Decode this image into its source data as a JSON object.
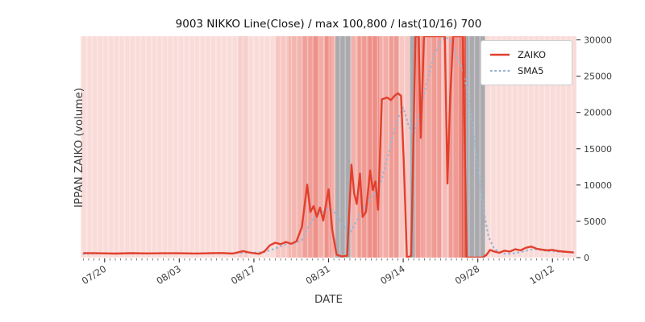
{
  "chart_data": {
    "type": "line",
    "title": "9003 NIKKO Line(Close) / max 100,800 / last(10/16) 700",
    "xlabel": "DATE",
    "ylabel": "IPPAN ZAIKO (volume)",
    "ylim": [
      0,
      30500
    ],
    "y_ticks": [
      0,
      5000,
      10000,
      15000,
      20000,
      25000,
      30000
    ],
    "x_domain_days": [
      -0.5,
      92.5
    ],
    "x_start_date": "07/16",
    "x_end_date": "10/16",
    "x_ticks": [
      {
        "day": 4,
        "label": "07/20"
      },
      {
        "day": 18,
        "label": "08/03"
      },
      {
        "day": 32,
        "label": "08/17"
      },
      {
        "day": 46,
        "label": "08/31"
      },
      {
        "day": 60,
        "label": "09/14"
      },
      {
        "day": 74,
        "label": "09/28"
      },
      {
        "day": 88,
        "label": "10/12"
      }
    ],
    "grid": false,
    "legend_position": "upper right",
    "plot_background": "#f9dcd9",
    "max_value": 100800,
    "last_value": 700,
    "last_date": "10/16",
    "series": [
      {
        "name": "ZAIKO",
        "color": "#e2402d",
        "style": "solid",
        "points": [
          [
            0,
            620
          ],
          [
            3,
            600
          ],
          [
            6,
            560
          ],
          [
            9,
            610
          ],
          [
            12,
            580
          ],
          [
            15,
            600
          ],
          [
            18,
            600
          ],
          [
            21,
            570
          ],
          [
            24,
            610
          ],
          [
            26,
            630
          ],
          [
            28,
            550
          ],
          [
            30,
            900
          ],
          [
            31,
            720
          ],
          [
            32,
            600
          ],
          [
            33,
            520
          ],
          [
            34,
            860
          ],
          [
            35,
            1700
          ],
          [
            36,
            2050
          ],
          [
            37,
            1850
          ],
          [
            38,
            2150
          ],
          [
            39,
            1900
          ],
          [
            40,
            2250
          ],
          [
            41,
            4200
          ],
          [
            42,
            10050
          ],
          [
            42.6,
            6300
          ],
          [
            43.2,
            7100
          ],
          [
            43.8,
            5600
          ],
          [
            44.4,
            6900
          ],
          [
            45,
            5100
          ],
          [
            46,
            9400
          ],
          [
            46.7,
            3800
          ],
          [
            47.5,
            400
          ],
          [
            48.5,
            150
          ],
          [
            49.5,
            260
          ],
          [
            50.3,
            12800
          ],
          [
            50.8,
            8900
          ],
          [
            51.3,
            7400
          ],
          [
            51.9,
            11600
          ],
          [
            52.4,
            5600
          ],
          [
            53,
            6250
          ],
          [
            53.8,
            12000
          ],
          [
            54.3,
            9300
          ],
          [
            54.8,
            10500
          ],
          [
            55.3,
            6600
          ],
          [
            56,
            21800
          ],
          [
            57,
            22050
          ],
          [
            57.7,
            21700
          ],
          [
            58.4,
            22300
          ],
          [
            59,
            22650
          ],
          [
            59.6,
            22300
          ],
          [
            60.1,
            13500
          ],
          [
            60.7,
            0
          ],
          [
            61.5,
            260
          ],
          [
            62.3,
            32000
          ],
          [
            62.9,
            32000
          ],
          [
            63.3,
            16500
          ],
          [
            63.9,
            32000
          ],
          [
            65,
            32000
          ],
          [
            66,
            34000
          ],
          [
            67,
            100800
          ],
          [
            67.8,
            32000
          ],
          [
            68.3,
            10200
          ],
          [
            68.8,
            22000
          ],
          [
            69.4,
            32000
          ],
          [
            70.4,
            32000
          ],
          [
            71.2,
            31000
          ],
          [
            71.9,
            0
          ],
          [
            72.8,
            0
          ],
          [
            73.8,
            0
          ],
          [
            74.8,
            0
          ],
          [
            75.6,
            350
          ],
          [
            76.3,
            1050
          ],
          [
            77,
            850
          ],
          [
            78,
            660
          ],
          [
            79,
            950
          ],
          [
            80,
            830
          ],
          [
            81,
            1150
          ],
          [
            82,
            1000
          ],
          [
            83,
            1350
          ],
          [
            84,
            1520
          ],
          [
            85,
            1230
          ],
          [
            86,
            1100
          ],
          [
            87,
            1000
          ],
          [
            88,
            1060
          ],
          [
            89,
            910
          ],
          [
            90,
            830
          ],
          [
            91,
            760
          ],
          [
            92,
            700
          ]
        ]
      },
      {
        "name": "SMA5",
        "color": "#9fb6d3",
        "style": "dotted",
        "points": [
          [
            0,
            520
          ],
          [
            4,
            580
          ],
          [
            8,
            590
          ],
          [
            12,
            585
          ],
          [
            16,
            590
          ],
          [
            20,
            590
          ],
          [
            24,
            595
          ],
          [
            28,
            600
          ],
          [
            30,
            650
          ],
          [
            32,
            700
          ],
          [
            34,
            750
          ],
          [
            36,
            1250
          ],
          [
            38,
            1850
          ],
          [
            40,
            2050
          ],
          [
            41,
            2400
          ],
          [
            42,
            3900
          ],
          [
            43,
            5200
          ],
          [
            44,
            6000
          ],
          [
            45,
            6300
          ],
          [
            46,
            6700
          ],
          [
            47,
            6400
          ],
          [
            48,
            5300
          ],
          [
            49,
            4300
          ],
          [
            50,
            3400
          ],
          [
            51,
            4700
          ],
          [
            52,
            6100
          ],
          [
            53,
            7300
          ],
          [
            54,
            8300
          ],
          [
            55,
            9100
          ],
          [
            56,
            10800
          ],
          [
            57,
            13600
          ],
          [
            58,
            16600
          ],
          [
            59,
            19200
          ],
          [
            60,
            20700
          ],
          [
            61,
            18200
          ],
          [
            62,
            17000
          ],
          [
            63,
            19800
          ],
          [
            64,
            22800
          ],
          [
            65,
            25800
          ],
          [
            66,
            28200
          ],
          [
            67,
            29800
          ],
          [
            68,
            30400
          ],
          [
            69,
            29800
          ],
          [
            70,
            27800
          ],
          [
            71,
            26200
          ],
          [
            72,
            23200
          ],
          [
            73,
            18200
          ],
          [
            74,
            12300
          ],
          [
            75,
            6800
          ],
          [
            76,
            2900
          ],
          [
            77,
            1300
          ],
          [
            78,
            720
          ],
          [
            79,
            560
          ],
          [
            80,
            520
          ],
          [
            81,
            620
          ],
          [
            82,
            760
          ],
          [
            83,
            920
          ],
          [
            84,
            1120
          ],
          [
            85,
            1150
          ],
          [
            86,
            1020
          ],
          [
            87,
            920
          ],
          [
            88,
            860
          ],
          [
            89,
            810
          ],
          [
            90,
            790
          ],
          [
            91,
            770
          ],
          [
            92,
            750
          ]
        ]
      }
    ],
    "bands": [
      {
        "start": 29,
        "end": 31,
        "color": "#f6cfcb"
      },
      {
        "start": 36,
        "end": 38.5,
        "color": "#f6c6c2"
      },
      {
        "start": 38.5,
        "end": 41,
        "color": "#f3b5af"
      },
      {
        "start": 41,
        "end": 43,
        "color": "#f0a09a"
      },
      {
        "start": 43,
        "end": 44.2,
        "color": "#ee9189"
      },
      {
        "start": 44.2,
        "end": 45.3,
        "color": "#f3ada7"
      },
      {
        "start": 45.3,
        "end": 46.4,
        "color": "#ee938b"
      },
      {
        "start": 46.4,
        "end": 47.3,
        "color": "#f3ada7"
      },
      {
        "start": 47.3,
        "end": 50.2,
        "color": "#aaaaaf"
      },
      {
        "start": 50.2,
        "end": 51.5,
        "color": "#f3b0aa"
      },
      {
        "start": 51.5,
        "end": 53.5,
        "color": "#ef9a93"
      },
      {
        "start": 53.5,
        "end": 55.5,
        "color": "#ed8d85"
      },
      {
        "start": 55.5,
        "end": 57.5,
        "color": "#f3ada7"
      },
      {
        "start": 57.5,
        "end": 59.2,
        "color": "#ef9a93"
      },
      {
        "start": 59.2,
        "end": 61.2,
        "color": "#f7c7c3"
      },
      {
        "start": 61.2,
        "end": 62.2,
        "color": "#a9a9ae"
      },
      {
        "start": 62.2,
        "end": 63.6,
        "color": "#ee938b"
      },
      {
        "start": 63.6,
        "end": 65.1,
        "color": "#f2a7a0"
      },
      {
        "start": 65.1,
        "end": 67.1,
        "color": "#ef9a93"
      },
      {
        "start": 67.1,
        "end": 68.6,
        "color": "#f5bcb7"
      },
      {
        "start": 68.6,
        "end": 70.2,
        "color": "#ef9a93"
      },
      {
        "start": 70.2,
        "end": 71,
        "color": "#ec867d"
      },
      {
        "start": 71,
        "end": 71.8,
        "color": "#e06052"
      },
      {
        "start": 71.8,
        "end": 75.4,
        "color": "#a9a9ae"
      }
    ]
  }
}
